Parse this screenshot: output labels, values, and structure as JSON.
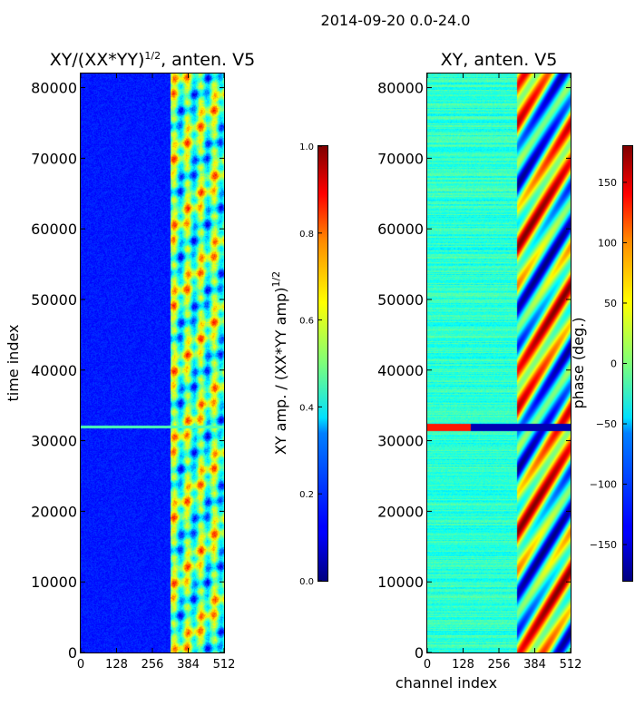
{
  "suptitle": "2014-09-20 0.0-24.0",
  "chart_data": [
    {
      "type": "heatmap",
      "title": "XY/(XX*YY)",
      "title_exponent": "1/2",
      "title_suffix": ", anten. V5",
      "xlabel": "",
      "ylabel": "time index",
      "xlim": [
        0,
        512
      ],
      "ylim": [
        0,
        82000
      ],
      "xticks": [
        0,
        128,
        256,
        384,
        512
      ],
      "yticks": [
        0,
        10000,
        20000,
        30000,
        40000,
        50000,
        60000,
        70000,
        80000
      ],
      "active_channel_range": [
        320,
        512
      ],
      "colorbar": {
        "label": "XY amp. / (XX*YY amp)",
        "label_exponent": "1/2",
        "range": [
          0.0,
          1.0
        ],
        "ticks": [
          "0.0",
          "0.2",
          "0.4",
          "0.6",
          "0.8",
          "1.0"
        ],
        "colormap": "jet"
      }
    },
    {
      "type": "heatmap",
      "title": "XY, anten. V5",
      "xlabel": "channel index",
      "ylabel": "",
      "xlim": [
        0,
        512
      ],
      "ylim": [
        0,
        82000
      ],
      "xticks": [
        0,
        128,
        256,
        384,
        512
      ],
      "yticks": [
        0,
        10000,
        20000,
        30000,
        40000,
        50000,
        60000,
        70000,
        80000
      ],
      "active_channel_range": [
        320,
        512
      ],
      "colorbar": {
        "label": "phase (deg.)",
        "range": [
          -180,
          180
        ],
        "ticks": [
          "150",
          "100",
          "50",
          "0",
          "−50",
          "−100",
          "−150"
        ],
        "colormap": "jet"
      }
    }
  ]
}
